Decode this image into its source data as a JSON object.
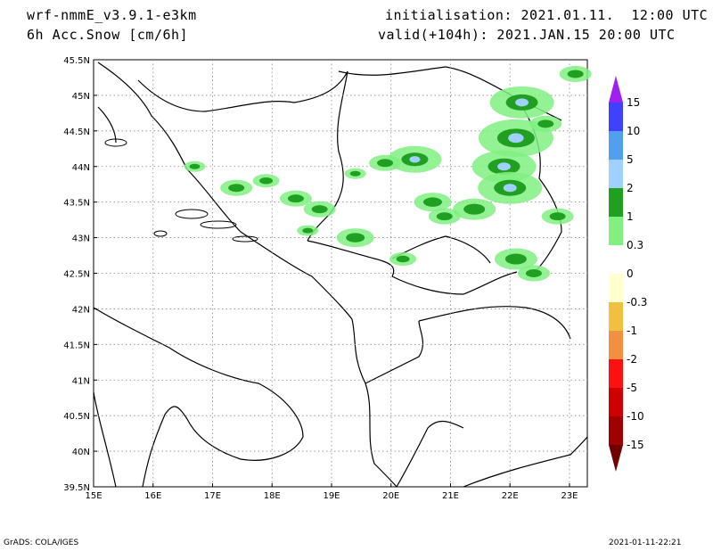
{
  "header": {
    "model": "wrf-nmmE_v3.9.1-e3km",
    "field": "6h Acc.Snow [cm/6h]",
    "init": "initialisation: 2021.01.11.  12:00 UTC",
    "valid": "valid(+104h): 2021.JAN.15 20:00 UTC"
  },
  "footer": {
    "left": "GrADS: COLA/IGES",
    "right": "2021-01-11-22:21"
  },
  "map": {
    "lon_ticks": [
      "15E",
      "16E",
      "17E",
      "18E",
      "19E",
      "20E",
      "21E",
      "22E",
      "23E"
    ],
    "lat_ticks": [
      "45.5N",
      "45N",
      "44.5N",
      "44N",
      "43.5N",
      "43N",
      "42.5N",
      "42N",
      "41.5N",
      "41N",
      "40.5N",
      "40N",
      "39.5N"
    ],
    "lon_range": [
      15,
      23.3
    ],
    "lat_range": [
      39.5,
      45.5
    ],
    "grid": true
  },
  "colorbar": {
    "labels": [
      "15",
      "10",
      "5",
      "2",
      "1",
      "0.3",
      "0",
      "-0.3",
      "-1",
      "-2",
      "-5",
      "-10",
      "-15"
    ],
    "colors": [
      "#a020f0",
      "#4040ff",
      "#50a0f0",
      "#a0d0ff",
      "#20a020",
      "#80f080",
      "#ffffff",
      "#ffffd0",
      "#f0c040",
      "#f09040",
      "#ff1010",
      "#d00000",
      "#a00000"
    ],
    "top_arrow_color": "#a020f0",
    "bottom_arrow_color": "#700000"
  }
}
